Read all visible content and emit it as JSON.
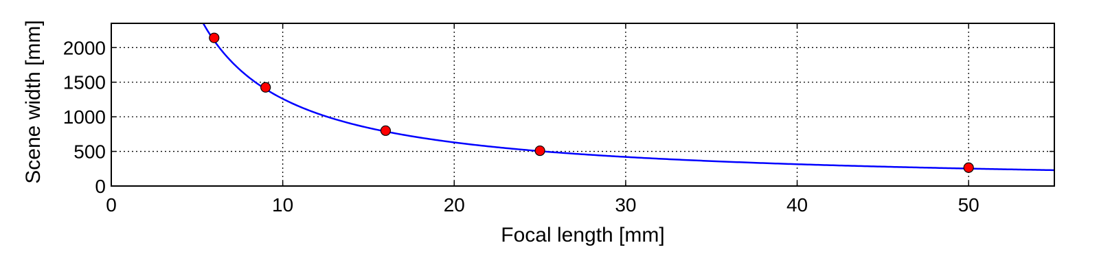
{
  "chart_data": {
    "type": "scatter",
    "title": "",
    "xlabel": "Focal length [mm]",
    "ylabel": "Scene width [mm]",
    "xlim": [
      0,
      55
    ],
    "ylim": [
      0,
      2350
    ],
    "x_ticks": [
      0,
      10,
      20,
      30,
      40,
      50
    ],
    "y_ticks": [
      0,
      500,
      1000,
      1500,
      2000
    ],
    "grid": true,
    "grid_style": "dotted",
    "series": [
      {
        "kind": "points",
        "x": [
          6,
          9,
          16,
          25,
          50
        ],
        "y": [
          2140,
          1425,
          800,
          510,
          265
        ],
        "color": "#ff0000",
        "edge_color": "#000000"
      },
      {
        "kind": "fit-curve",
        "equation": "y = 12600 / x",
        "coefficient": 12600,
        "x_range": [
          5.36,
          55
        ],
        "color": "#0000ff"
      }
    ]
  }
}
